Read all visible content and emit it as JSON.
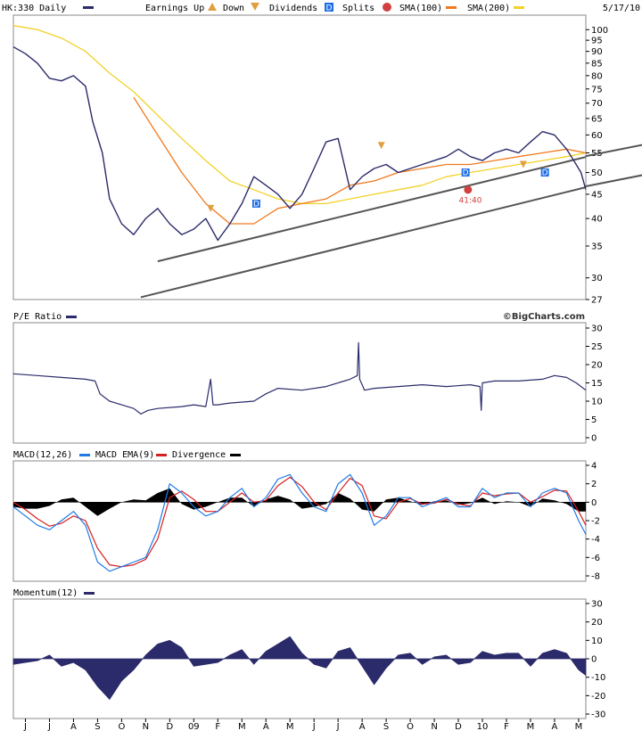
{
  "header": {
    "symbol_label": "HK:330 Daily",
    "earnings_up": "Earnings Up",
    "down": "Down",
    "dividends": "Dividends",
    "dividend_marker": "D",
    "splits": "Splits",
    "sma100_label": "SMA(100)",
    "sma200_label": "SMA(200)",
    "date": "5/17/10"
  },
  "brand": "©BigCharts.com",
  "colors": {
    "price": "#2b2b6b",
    "sma100": "#f07a1e",
    "sma200": "#f2d227",
    "macd": "#1e7ae6",
    "macd_ema": "#d62020",
    "divergence": "#000000",
    "momentum": "#2b2b6b",
    "trendline": "#555555",
    "dividend_badge": "#1e6ee6",
    "split_badge": "#d04040",
    "earnings_marker": "#e0a040"
  },
  "chart_data": [
    {
      "type": "line",
      "panel": "price",
      "title": "HK:330 Daily",
      "scale": "log",
      "ylim": [
        27,
        105
      ],
      "y_ticks": [
        27,
        30,
        35,
        40,
        45,
        50,
        55,
        60,
        65,
        70,
        75,
        80,
        85,
        90,
        95,
        100
      ],
      "x_ticks": [
        "J",
        "J",
        "A",
        "S",
        "O",
        "N",
        "D",
        "09",
        "F",
        "M",
        "A",
        "M",
        "J",
        "J",
        "A",
        "S",
        "O",
        "N",
        "D",
        "10",
        "F",
        "M",
        "A",
        "M"
      ],
      "x_range": [
        0,
        23.8
      ],
      "series": [
        {
          "name": "HK:330 Daily",
          "x": [
            0,
            0.5,
            1,
            1.5,
            2,
            2.5,
            3,
            3.3,
            3.7,
            4,
            4.5,
            5,
            5.5,
            6,
            6.5,
            7,
            7.5,
            8,
            8.5,
            9,
            9.5,
            10,
            10.5,
            11,
            11.5,
            12,
            12.5,
            13,
            13.5,
            14,
            14.5,
            15,
            15.5,
            16,
            16.5,
            17,
            17.5,
            18,
            18.5,
            19,
            19.5,
            20,
            20.5,
            21,
            21.5,
            22,
            22.5,
            23,
            23.3,
            23.6,
            23.8
          ],
          "y": [
            92,
            89,
            85,
            79,
            78,
            80,
            76,
            64,
            55,
            44,
            39,
            37,
            40,
            42,
            39,
            37,
            38,
            40,
            36,
            39,
            43,
            49,
            47,
            45,
            42,
            45,
            51,
            58,
            59,
            46,
            49,
            51,
            52,
            50,
            51,
            52,
            53,
            54,
            56,
            54,
            53,
            55,
            56,
            55,
            58,
            61,
            60,
            56,
            53,
            50,
            46
          ]
        },
        {
          "name": "SMA(100)",
          "x": [
            5,
            6,
            7,
            8,
            9,
            10,
            11,
            12,
            13,
            14,
            15,
            16,
            17,
            18,
            19,
            20,
            21,
            22,
            23,
            23.8
          ],
          "y": [
            72,
            60,
            50,
            43,
            39,
            39,
            42,
            43,
            44,
            47,
            48,
            50,
            51,
            52,
            52,
            53,
            54,
            55,
            56,
            55
          ]
        },
        {
          "name": "SMA(200)",
          "x": [
            0,
            1,
            2,
            3,
            4,
            5,
            6,
            7,
            8,
            9,
            10,
            11,
            12,
            13,
            14,
            15,
            16,
            17,
            18,
            19,
            20,
            21,
            22,
            23,
            23.8
          ],
          "y": [
            102,
            100,
            96,
            90,
            81,
            74,
            66,
            59,
            53,
            48,
            46,
            44,
            43,
            43,
            44,
            45,
            46,
            47,
            49,
            50,
            51,
            52,
            53,
            54,
            55
          ]
        }
      ],
      "trendlines": [
        {
          "x": [
            6.0,
            24.5
          ],
          "y": [
            32.5,
            55
          ]
        },
        {
          "x": [
            5.3,
            24.5
          ],
          "y": [
            27.3,
            47.5
          ]
        }
      ],
      "annotations": [
        {
          "kind": "earnings-down",
          "x": 8.2,
          "y": 42
        },
        {
          "kind": "dividend",
          "x": 10.1,
          "y": 43
        },
        {
          "kind": "earnings-down",
          "x": 15.3,
          "y": 57
        },
        {
          "kind": "dividend",
          "x": 18.8,
          "y": 50
        },
        {
          "kind": "split",
          "x": 18.9,
          "y": 46
        },
        {
          "kind": "split-label",
          "x": 19.0,
          "y": 43.2,
          "text": "41:40"
        },
        {
          "kind": "earnings-down",
          "x": 21.2,
          "y": 52
        },
        {
          "kind": "dividend",
          "x": 22.1,
          "y": 50
        }
      ]
    },
    {
      "type": "line",
      "panel": "pe",
      "title": "P/E Ratio",
      "ylim": [
        0,
        30
      ],
      "y_ticks": [
        0,
        5,
        10,
        15,
        20,
        25,
        30
      ],
      "series": [
        {
          "name": "P/E Ratio",
          "x": [
            0,
            1,
            2,
            3,
            3.4,
            3.6,
            4,
            4.5,
            5,
            5.3,
            5.6,
            6,
            7,
            7.5,
            8,
            8.2,
            8.3,
            8.5,
            9,
            10,
            10.5,
            11,
            12,
            13,
            14,
            14.3,
            14.35,
            14.4,
            14.6,
            15,
            16,
            17,
            18,
            19,
            19.4,
            19.45,
            19.5,
            20,
            21,
            22,
            22.5,
            23,
            23.4,
            23.8
          ],
          "y": [
            17.5,
            17,
            16.5,
            16,
            15.5,
            12,
            10,
            9,
            8,
            6.5,
            7.5,
            8,
            8.5,
            9,
            8.5,
            16,
            9,
            9,
            9.5,
            10,
            12,
            13.5,
            13,
            14,
            16,
            17,
            26,
            16,
            13,
            13.5,
            14,
            14.5,
            14,
            14.5,
            14,
            7.5,
            15,
            15.5,
            15.5,
            16,
            17,
            16.5,
            15,
            13
          ]
        }
      ]
    },
    {
      "type": "line",
      "panel": "macd",
      "title": "MACD(12,26)",
      "ylim": [
        -8,
        4
      ],
      "y_ticks": [
        -8,
        -6,
        -4,
        -2,
        0,
        2,
        4
      ],
      "series": [
        {
          "name": "MACD(12,26)",
          "x": [
            0,
            0.5,
            1,
            1.5,
            2,
            2.5,
            3,
            3.5,
            4,
            4.5,
            5,
            5.5,
            6,
            6.5,
            7,
            7.5,
            8,
            8.5,
            9,
            9.5,
            10,
            10.5,
            11,
            11.5,
            12,
            12.5,
            13,
            13.5,
            14,
            14.5,
            15,
            15.5,
            16,
            16.5,
            17,
            17.5,
            18,
            18.5,
            19,
            19.5,
            20,
            20.5,
            21,
            21.5,
            22,
            22.5,
            23,
            23.5,
            23.8
          ],
          "y": [
            -0.5,
            -1.5,
            -2.5,
            -3,
            -2,
            -1,
            -2.5,
            -6.5,
            -7.5,
            -7,
            -6.5,
            -6,
            -3,
            2,
            1,
            -0.5,
            -1.5,
            -1,
            0.5,
            1.5,
            -0.5,
            0.5,
            2.5,
            3,
            1,
            -0.5,
            -1,
            2,
            3,
            1,
            -2.5,
            -1.5,
            0.5,
            0.5,
            -0.5,
            0,
            0.5,
            -0.5,
            -0.5,
            1.5,
            0.5,
            1,
            1,
            -0.5,
            1,
            1.5,
            1,
            -2,
            -3.5
          ]
        },
        {
          "name": "MACD EMA(9)",
          "x": [
            0,
            0.5,
            1,
            1.5,
            2,
            2.5,
            3,
            3.5,
            4,
            4.5,
            5,
            5.5,
            6,
            6.5,
            7,
            7.5,
            8,
            8.5,
            9,
            9.5,
            10,
            10.5,
            11,
            11.5,
            12,
            12.5,
            13,
            13.5,
            14,
            14.5,
            15,
            15.5,
            16,
            16.5,
            17,
            17.5,
            18,
            18.5,
            19,
            19.5,
            20,
            20.5,
            21,
            21.5,
            22,
            22.5,
            23,
            23.5,
            23.8
          ],
          "y": [
            0,
            -0.8,
            -1.8,
            -2.6,
            -2.3,
            -1.5,
            -2,
            -5,
            -6.8,
            -7,
            -6.8,
            -6.2,
            -4,
            0.5,
            1.2,
            0.3,
            -1,
            -1,
            0,
            1,
            0,
            0.2,
            1.8,
            2.7,
            1.7,
            0,
            -0.8,
            1,
            2.6,
            1.8,
            -1.5,
            -1.8,
            0,
            0.4,
            -0.2,
            -0.1,
            0.3,
            -0.2,
            -0.4,
            1,
            0.7,
            0.9,
            1,
            0,
            0.6,
            1.3,
            1.2,
            -1,
            -2.5
          ]
        },
        {
          "name": "Divergence",
          "x": [
            0,
            0.5,
            1,
            1.5,
            2,
            2.5,
            3,
            3.5,
            4,
            4.5,
            5,
            5.5,
            6,
            6.5,
            7,
            7.5,
            8,
            8.5,
            9,
            9.5,
            10,
            10.5,
            11,
            11.5,
            12,
            12.5,
            13,
            13.5,
            14,
            14.5,
            15,
            15.5,
            16,
            16.5,
            17,
            17.5,
            18,
            18.5,
            19,
            19.5,
            20,
            20.5,
            21,
            21.5,
            22,
            22.5,
            23,
            23.5,
            23.8
          ],
          "y": [
            -0.5,
            -0.7,
            -0.7,
            -0.4,
            0.3,
            0.5,
            -0.5,
            -1.5,
            -0.7,
            0,
            0.3,
            0.2,
            1,
            1.5,
            -0.2,
            -0.8,
            -0.5,
            0,
            0.5,
            0.5,
            -0.5,
            0.3,
            0.7,
            0.3,
            -0.7,
            -0.5,
            -0.2,
            1,
            0.4,
            -0.8,
            -1,
            0.3,
            0.5,
            0.1,
            -0.3,
            0.1,
            0.2,
            -0.3,
            -0.1,
            0.5,
            -0.2,
            0.1,
            0,
            -0.5,
            0.4,
            0.2,
            -0.2,
            -1,
            -1
          ]
        }
      ]
    },
    {
      "type": "bar",
      "panel": "momentum",
      "title": "Momentum(12)",
      "ylim": [
        -30,
        30
      ],
      "y_ticks": [
        -30,
        -20,
        -10,
        0,
        10,
        20,
        30
      ],
      "series": [
        {
          "name": "Momentum(12)",
          "x": [
            0,
            0.5,
            1,
            1.5,
            2,
            2.5,
            3,
            3.5,
            4,
            4.5,
            5,
            5.5,
            6,
            6.5,
            7,
            7.5,
            8,
            8.5,
            9,
            9.5,
            10,
            10.5,
            11,
            11.5,
            12,
            12.5,
            13,
            13.5,
            14,
            14.5,
            15,
            15.5,
            16,
            16.5,
            17,
            17.5,
            18,
            18.5,
            19,
            19.5,
            20,
            20.5,
            21,
            21.5,
            22,
            22.5,
            23,
            23.5,
            23.8
          ],
          "y": [
            -3,
            -2,
            -1,
            2,
            -4,
            -2,
            -6,
            -15,
            -22,
            -12,
            -6,
            2,
            8,
            10,
            6,
            -4,
            -3,
            -2,
            2,
            5,
            -3,
            4,
            8,
            12,
            3,
            -3,
            -5,
            4,
            6,
            -4,
            -14,
            -5,
            2,
            3,
            -3,
            1,
            2,
            -3,
            -2,
            4,
            2,
            3,
            3,
            -4,
            3,
            5,
            3,
            -6,
            -9
          ]
        }
      ]
    }
  ]
}
